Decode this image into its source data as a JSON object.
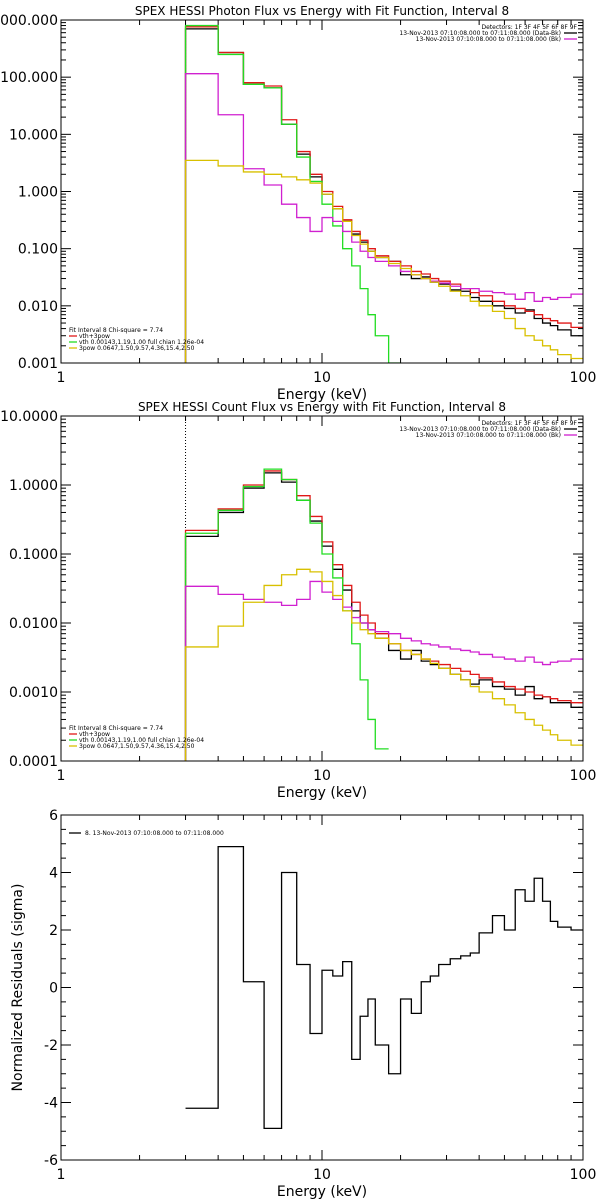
{
  "colors": {
    "data": "#000000",
    "total": "#e01818",
    "vth": "#22dd22",
    "bkg": "#d020d0",
    "powerlaw": "#d8c000"
  },
  "chart_data": [
    {
      "type": "line",
      "title": "SPEX HESSI Photon Flux vs Energy with Fit Function, Interval 8",
      "xlabel": "Energy (keV)",
      "ylabel": "",
      "xscale": "log",
      "yscale": "log",
      "xlim": [
        1,
        100
      ],
      "ylim": [
        0.001,
        1000
      ],
      "xticks": [
        {
          "v": 1,
          "t": "1"
        },
        {
          "v": 10,
          "t": "10"
        },
        {
          "v": 100,
          "t": "100"
        }
      ],
      "yticks": [
        {
          "v": 1000,
          "t": "1000.000"
        },
        {
          "v": 100,
          "t": "100.000"
        },
        {
          "v": 10,
          "t": "10.000"
        },
        {
          "v": 1,
          "t": "1.000"
        },
        {
          "v": 0.1,
          "t": "0.100"
        },
        {
          "v": 0.01,
          "t": "0.010"
        },
        {
          "v": 0.001,
          "t": "0.001"
        }
      ],
      "vline": 3,
      "legend_right": {
        "header": "Detectors: 1F 3F 4F 5F 6F 8F 9F",
        "entries": [
          {
            "text": "13-Nov-2013 07:10:08.000 to 07:11:08.000 (Data-Bk)",
            "color": "data"
          },
          {
            "text": "13-Nov-2013 07:10:08.000 to 07:11:08.000 (Bk)",
            "color": "bkg"
          }
        ]
      },
      "legend_left": {
        "header": "Fit Interval 8   Chi-square = 7.74",
        "entries": [
          {
            "text": "vth+3pow",
            "color": "total"
          },
          {
            "text": "vth 0.00143,1.19,1.00  full chian 1.26e-04",
            "color": "vth"
          },
          {
            "text": "3pow 0.0647,1.50,9.57,4.36,15.4,2.50",
            "color": "powerlaw"
          }
        ]
      },
      "edges": [
        3,
        3.5,
        4,
        4.5,
        5,
        6,
        7,
        8,
        9,
        10,
        11,
        12,
        13,
        14,
        15,
        16,
        18,
        20,
        22,
        24,
        26,
        28,
        31,
        34,
        37,
        40,
        45,
        50,
        55,
        60,
        65,
        70,
        75,
        80,
        90,
        100
      ],
      "series": [
        {
          "color": "data",
          "values": [
            700,
            700,
            270,
            270,
            75,
            65,
            15,
            4.5,
            1.8,
            0.9,
            0.5,
            0.3,
            0.18,
            0.13,
            0.09,
            0.07,
            0.06,
            0.035,
            0.03,
            0.032,
            0.026,
            0.024,
            0.019,
            0.018,
            0.014,
            0.012,
            0.01,
            0.009,
            0.0075,
            0.0085,
            0.006,
            0.005,
            0.0045,
            0.0038,
            0.003
          ]
        },
        {
          "color": "total",
          "values": [
            760,
            760,
            270,
            270,
            80,
            70,
            18,
            5,
            2,
            1,
            0.55,
            0.32,
            0.2,
            0.14,
            0.1,
            0.075,
            0.06,
            0.05,
            0.04,
            0.036,
            0.03,
            0.027,
            0.024,
            0.02,
            0.017,
            0.015,
            0.012,
            0.01,
            0.009,
            0.008,
            0.007,
            0.006,
            0.0055,
            0.005,
            0.0042
          ]
        },
        {
          "color": "vth",
          "values": [
            800,
            800,
            250,
            250,
            75,
            65,
            15,
            4,
            1.5,
            0.6,
            0.25,
            0.1,
            0.05,
            0.02,
            0.007,
            0.003,
            0.001,
            null,
            null,
            null,
            null,
            null,
            null,
            null,
            null,
            null,
            null,
            null,
            null,
            null,
            null,
            null,
            null,
            null,
            null
          ]
        },
        {
          "color": "bkg",
          "values": [
            115,
            115,
            22,
            22,
            2.5,
            1.3,
            0.6,
            0.35,
            0.2,
            0.35,
            0.3,
            0.2,
            0.13,
            0.09,
            0.07,
            0.06,
            0.05,
            0.04,
            0.035,
            0.03,
            0.027,
            0.025,
            0.022,
            0.02,
            0.02,
            0.018,
            0.017,
            0.016,
            0.013,
            0.017,
            0.012,
            0.014,
            0.013,
            0.014,
            0.016
          ]
        },
        {
          "color": "powerlaw",
          "values": [
            3.5,
            3.5,
            2.8,
            2.8,
            2.2,
            2,
            1.8,
            1.6,
            1.4,
            0.9,
            0.5,
            0.3,
            0.17,
            0.12,
            0.09,
            0.07,
            0.055,
            0.045,
            0.035,
            0.03,
            0.026,
            0.022,
            0.018,
            0.015,
            0.012,
            0.01,
            0.008,
            0.006,
            0.004,
            0.003,
            0.0025,
            0.002,
            0.0017,
            0.0014,
            0.0012
          ]
        }
      ]
    },
    {
      "type": "line",
      "title": "SPEX HESSI Count Flux vs Energy with Fit Function, Interval 8",
      "xlabel": "Energy (keV)",
      "ylabel": "",
      "xscale": "log",
      "yscale": "log",
      "xlim": [
        1,
        100
      ],
      "ylim": [
        0.0001,
        10
      ],
      "xticks": [
        {
          "v": 1,
          "t": "1"
        },
        {
          "v": 10,
          "t": "10"
        },
        {
          "v": 100,
          "t": "100"
        }
      ],
      "yticks": [
        {
          "v": 10,
          "t": "10.0000"
        },
        {
          "v": 1,
          "t": "1.0000"
        },
        {
          "v": 0.1,
          "t": "0.1000"
        },
        {
          "v": 0.01,
          "t": "0.0100"
        },
        {
          "v": 0.001,
          "t": "0.0010"
        },
        {
          "v": 0.0001,
          "t": "0.0001"
        }
      ],
      "vline": 3,
      "legend_right": {
        "header": "Detectors: 1F 3F 4F 5F 6F 8F 9F",
        "entries": [
          {
            "text": "13-Nov-2013 07:10:08.000 to 07:11:08.000 (Data-Bk)",
            "color": "data"
          },
          {
            "text": "13-Nov-2013 07:10:08.000 to 07:11:08.000 (Bk)",
            "color": "bkg"
          }
        ]
      },
      "legend_left": {
        "header": "Fit Interval 8   Chi-square = 7.74",
        "entries": [
          {
            "text": "vth+3pow",
            "color": "total"
          },
          {
            "text": "vth 0.00143,1.19,1.00  full chian 1.26e-04",
            "color": "vth"
          },
          {
            "text": "3pow 0.0647,1.50,9.57,4.36,15.4,2.50",
            "color": "powerlaw"
          }
        ]
      },
      "edges": [
        3,
        3.5,
        4,
        4.5,
        5,
        6,
        7,
        8,
        9,
        10,
        11,
        12,
        13,
        14,
        15,
        16,
        18,
        20,
        22,
        24,
        26,
        28,
        31,
        34,
        37,
        40,
        45,
        50,
        55,
        60,
        65,
        70,
        75,
        80,
        90,
        100
      ],
      "series": [
        {
          "color": "data",
          "values": [
            0.18,
            0.18,
            0.4,
            0.4,
            0.9,
            1.5,
            1.1,
            0.6,
            0.3,
            0.13,
            0.06,
            0.03,
            0.015,
            0.01,
            0.008,
            0.006,
            0.004,
            0.003,
            0.004,
            0.0028,
            0.0025,
            0.0022,
            0.0018,
            0.0015,
            0.0013,
            0.0015,
            0.0012,
            0.0011,
            0.0009,
            0.0012,
            0.0008,
            0.00085,
            0.0007,
            0.0007,
            0.0006
          ]
        },
        {
          "color": "total",
          "values": [
            0.22,
            0.22,
            0.45,
            0.45,
            1,
            1.6,
            1.2,
            0.7,
            0.35,
            0.15,
            0.07,
            0.035,
            0.02,
            0.013,
            0.01,
            0.007,
            0.005,
            0.004,
            0.0035,
            0.003,
            0.0028,
            0.0025,
            0.0022,
            0.002,
            0.0018,
            0.0016,
            0.0014,
            0.0012,
            0.0011,
            0.001,
            0.0009,
            0.00085,
            0.0008,
            0.00075,
            0.0007
          ]
        },
        {
          "color": "vth",
          "values": [
            0.2,
            0.2,
            0.43,
            0.43,
            0.95,
            1.7,
            1.2,
            0.6,
            0.28,
            0.1,
            0.045,
            0.015,
            0.005,
            0.0015,
            0.0004,
            0.00015,
            null,
            null,
            null,
            null,
            null,
            null,
            null,
            null,
            null,
            null,
            null,
            null,
            null,
            null,
            null,
            null,
            null,
            null,
            null
          ]
        },
        {
          "color": "bkg",
          "values": [
            0.034,
            0.034,
            0.026,
            0.026,
            0.022,
            0.02,
            0.018,
            0.022,
            0.04,
            0.028,
            0.022,
            0.017,
            0.012,
            0.01,
            0.008,
            0.0075,
            0.007,
            0.006,
            0.0055,
            0.005,
            0.0048,
            0.0045,
            0.0042,
            0.004,
            0.0038,
            0.0035,
            0.0032,
            0.003,
            0.0028,
            0.0032,
            0.0027,
            0.0025,
            0.0027,
            0.0028,
            0.003
          ]
        },
        {
          "color": "powerlaw",
          "values": [
            0.0045,
            0.0045,
            0.009,
            0.009,
            0.02,
            0.035,
            0.05,
            0.06,
            0.055,
            0.04,
            0.025,
            0.015,
            0.01,
            0.008,
            0.007,
            0.006,
            0.005,
            0.004,
            0.0035,
            0.003,
            0.0026,
            0.0022,
            0.0018,
            0.0015,
            0.0012,
            0.001,
            0.0008,
            0.00065,
            0.0005,
            0.0004,
            0.00033,
            0.00028,
            0.00024,
            0.0002,
            0.00017
          ]
        }
      ]
    },
    {
      "type": "line",
      "title": "",
      "xlabel": "Energy (keV)",
      "ylabel": "Normalized Residuals (sigma)",
      "xscale": "log",
      "yscale": "linear",
      "xlim": [
        1,
        100
      ],
      "ylim": [
        -6,
        6
      ],
      "xticks": [
        {
          "v": 1,
          "t": "1"
        },
        {
          "v": 10,
          "t": "10"
        },
        {
          "v": 100,
          "t": "100"
        }
      ],
      "yticks": [
        {
          "v": 6,
          "t": "6"
        },
        {
          "v": 4,
          "t": "4"
        },
        {
          "v": 2,
          "t": "2"
        },
        {
          "v": 0,
          "t": "0"
        },
        {
          "v": -2,
          "t": "-2"
        },
        {
          "v": -4,
          "t": "-4"
        },
        {
          "v": -6,
          "t": "-6"
        }
      ],
      "legend_left": {
        "header": "",
        "entries": [
          {
            "text": "8. 13-Nov-2013 07:10:08.000 to 07:11:08.000",
            "color": "data"
          }
        ]
      },
      "edges": [
        3,
        4,
        5,
        6,
        7,
        8,
        9,
        10,
        11,
        12,
        13,
        14,
        15,
        16,
        18,
        20,
        22,
        24,
        26,
        28,
        31,
        34,
        37,
        40,
        45,
        50,
        55,
        60,
        65,
        70,
        75,
        80,
        90,
        100
      ],
      "series": [
        {
          "color": "data",
          "values": [
            -4.2,
            4.9,
            0.2,
            -4.9,
            4.0,
            0.8,
            -1.6,
            0.6,
            0.4,
            0.9,
            -2.5,
            -1.0,
            -0.4,
            -2.0,
            -3.0,
            -0.4,
            -0.9,
            0.2,
            0.4,
            0.8,
            1.0,
            1.1,
            1.2,
            1.9,
            2.5,
            2.0,
            3.4,
            3.0,
            3.8,
            3.0,
            2.3,
            2.1,
            2.0
          ]
        }
      ]
    }
  ]
}
